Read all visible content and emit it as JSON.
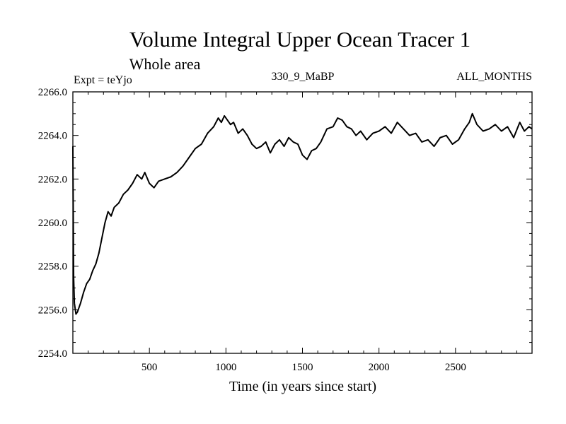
{
  "chart_data": {
    "type": "line",
    "title": "Volume Integral Upper Ocean Tracer 1",
    "subtitle": "Whole area",
    "left_label": "Expt = teYjo",
    "center_label": "330_9_MaBP",
    "right_label": "ALL_MONTHS",
    "xlabel": "Time (in years since start)",
    "ylabel": "",
    "xlim": [
      0,
      3000
    ],
    "ylim": [
      2254.0,
      2266.0
    ],
    "x_ticks": [
      500,
      1000,
      1500,
      2000,
      2500
    ],
    "x_tick_labels": [
      "500",
      "1000",
      "1500",
      "2000",
      "2500"
    ],
    "y_ticks": [
      2254.0,
      2256.0,
      2258.0,
      2260.0,
      2262.0,
      2264.0,
      2266.0
    ],
    "y_tick_labels": [
      "2254.0",
      "2256.0",
      "2258.0",
      "2260.0",
      "2262.0",
      "2264.0",
      "2266.0"
    ],
    "grid": false,
    "series": [
      {
        "name": "Tracer 1",
        "color": "#000000",
        "x": [
          0,
          5,
          10,
          20,
          30,
          50,
          70,
          90,
          110,
          130,
          150,
          170,
          190,
          210,
          230,
          250,
          270,
          300,
          330,
          360,
          390,
          420,
          450,
          470,
          500,
          530,
          560,
          600,
          640,
          680,
          720,
          760,
          800,
          840,
          880,
          920,
          950,
          970,
          990,
          1010,
          1030,
          1050,
          1080,
          1110,
          1140,
          1170,
          1200,
          1230,
          1260,
          1290,
          1320,
          1350,
          1380,
          1410,
          1440,
          1470,
          1500,
          1530,
          1560,
          1590,
          1620,
          1660,
          1700,
          1730,
          1760,
          1790,
          1820,
          1850,
          1880,
          1920,
          1960,
          2000,
          2040,
          2080,
          2120,
          2160,
          2200,
          2240,
          2280,
          2320,
          2360,
          2400,
          2440,
          2480,
          2520,
          2560,
          2590,
          2610,
          2640,
          2680,
          2720,
          2760,
          2800,
          2840,
          2880,
          2920,
          2950,
          2980,
          3000
        ],
        "y": [
          2263.5,
          2257.5,
          2256.3,
          2255.8,
          2255.9,
          2256.3,
          2256.8,
          2257.2,
          2257.4,
          2257.8,
          2258.1,
          2258.6,
          2259.3,
          2260.0,
          2260.5,
          2260.3,
          2260.7,
          2260.9,
          2261.3,
          2261.5,
          2261.8,
          2262.2,
          2262.0,
          2262.3,
          2261.8,
          2261.6,
          2261.9,
          2262.0,
          2262.1,
          2262.3,
          2262.6,
          2263.0,
          2263.4,
          2263.6,
          2264.1,
          2264.4,
          2264.8,
          2264.6,
          2264.9,
          2264.7,
          2264.5,
          2264.6,
          2264.1,
          2264.3,
          2264.0,
          2263.6,
          2263.4,
          2263.5,
          2263.7,
          2263.2,
          2263.6,
          2263.8,
          2263.5,
          2263.9,
          2263.7,
          2263.6,
          2263.1,
          2262.9,
          2263.3,
          2263.4,
          2263.7,
          2264.3,
          2264.4,
          2264.8,
          2264.7,
          2264.4,
          2264.3,
          2264.0,
          2264.2,
          2263.8,
          2264.1,
          2264.2,
          2264.4,
          2264.1,
          2264.6,
          2264.3,
          2264.0,
          2264.1,
          2263.7,
          2263.8,
          2263.5,
          2263.9,
          2264.0,
          2263.6,
          2263.8,
          2264.3,
          2264.6,
          2265.0,
          2264.5,
          2264.2,
          2264.3,
          2264.5,
          2264.2,
          2264.4,
          2263.9,
          2264.6,
          2264.2,
          2264.4,
          2264.3
        ]
      }
    ]
  }
}
